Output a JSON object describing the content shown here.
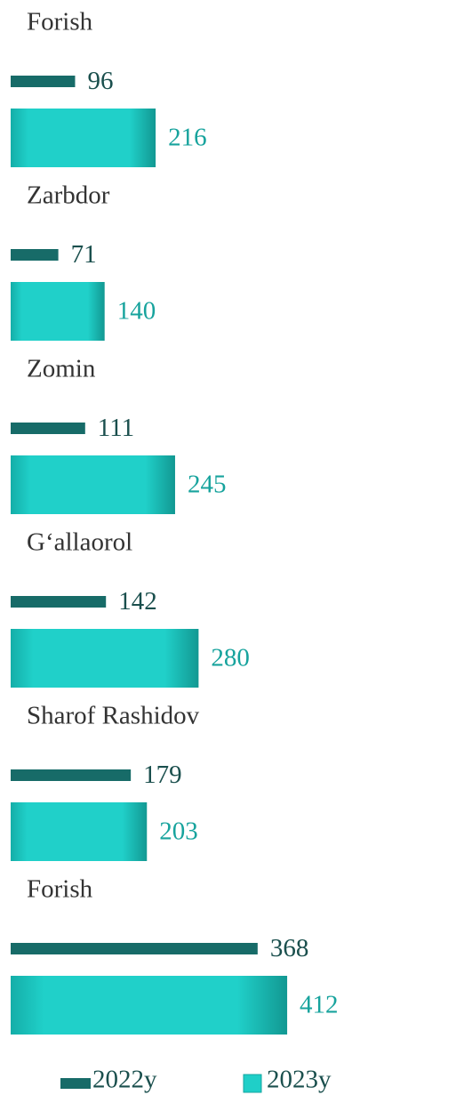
{
  "chart_data": {
    "type": "bar",
    "orientation": "horizontal",
    "categories": [
      "Forish",
      "Zarbdor",
      "Zomin",
      "G‘allaorol",
      "Sharof Rashidov",
      "Forish"
    ],
    "series": [
      {
        "name": "2022y",
        "color": "#176b68",
        "values": [
          96,
          71,
          111,
          142,
          179,
          368
        ]
      },
      {
        "name": "2023y",
        "color": "#1fcfc8",
        "values": [
          216,
          140,
          245,
          280,
          203,
          412
        ]
      }
    ],
    "legend": "bottom"
  }
}
